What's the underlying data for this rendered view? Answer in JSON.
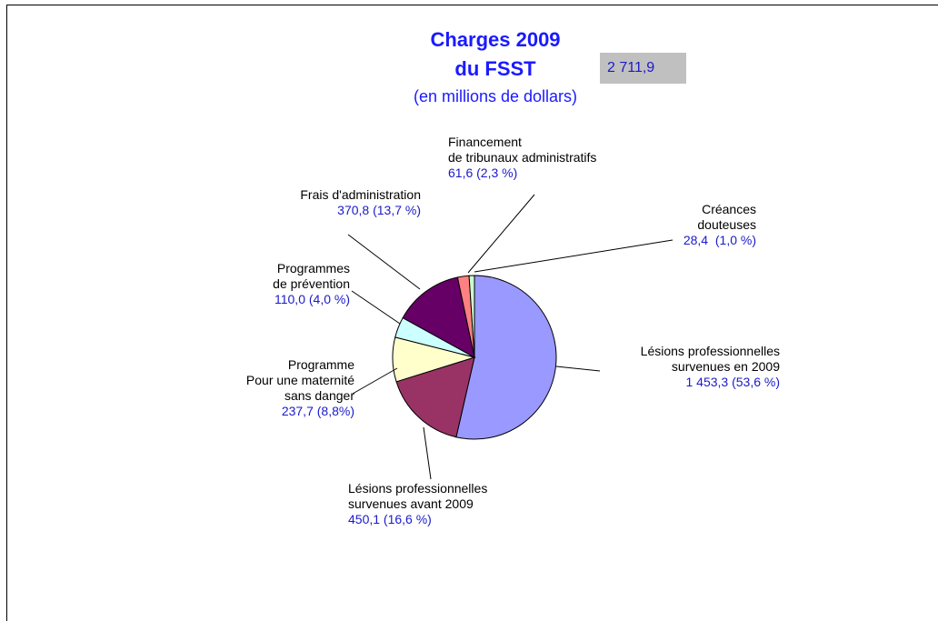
{
  "chart_data": {
    "type": "pie",
    "title": "Charges 2009\ndu FSST",
    "subtitle": "(en millions de dollars)",
    "total": {
      "value": 2711.9,
      "label": "2 711,9"
    },
    "categories": [
      "Lésions professionnelles\nsurvenues en 2009",
      "Lésions professionnelles\nsurvenues avant 2009",
      "Programme\nPour une maternité\nsans danger",
      "Programmes\nde prévention",
      "Frais d'administration",
      "Financement\nde tribunaux administratifs",
      "Créances\ndouteuses"
    ],
    "values": [
      1453.3,
      450.1,
      237.7,
      110.0,
      370.8,
      61.6,
      28.4
    ],
    "value_labels": [
      "1 453,3 (53,6 %)",
      "450,1 (16,6 %)",
      "237,7 (8,8%)",
      "110,0 (4,0 %)",
      "370,8 (13,7 %)",
      "61,6 (2,3 %)",
      "28,4  (1,0 %)"
    ],
    "colors": [
      "#9999ff",
      "#993366",
      "#ffffcc",
      "#ccffff",
      "#660066",
      "#ff8080",
      "#ccffcc"
    ]
  }
}
